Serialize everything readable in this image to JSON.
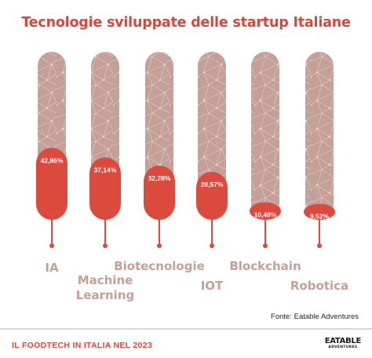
{
  "chart_data": {
    "type": "bar",
    "title": "Tecnologie sviluppate delle startup Italiane",
    "categories": [
      "IA",
      "Machine Learning",
      "Biotecnologie",
      "IOT",
      "Blockchain",
      "Robotica"
    ],
    "values": [
      42.86,
      37.14,
      32.28,
      28.57,
      10.48,
      9.52
    ],
    "value_labels": [
      "42,86%",
      "37,14%",
      "32,28%",
      "28,57%",
      "10,48%",
      "9,52%"
    ],
    "label_lines": [
      [
        "IA"
      ],
      [
        "Machine",
        "Learning"
      ],
      [
        "Biotecnologie"
      ],
      [
        "IOT"
      ],
      [
        "Blockchain"
      ],
      [
        "Robotica"
      ]
    ],
    "ylim": [
      0,
      100
    ],
    "colors": {
      "bar": "#db4a3c",
      "track": "#c4a099",
      "label": "#c99f95",
      "title": "#d9473a"
    }
  },
  "source": "Fonte: Eatable Adventures",
  "footer": {
    "left": "IL FOODTECH IN ITALIA NEL 2023",
    "logo_main": "EATABLE",
    "logo_sub": "ADVENTURES"
  }
}
